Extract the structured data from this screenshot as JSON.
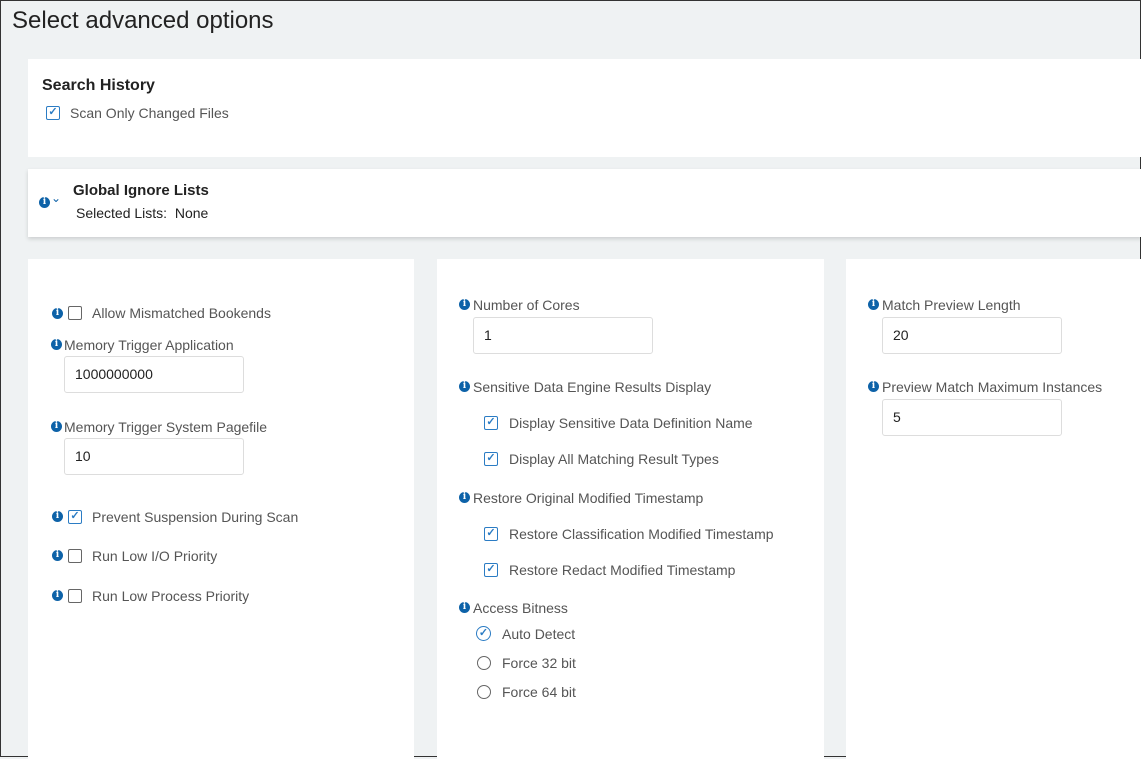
{
  "title": "Select advanced options",
  "search_history": {
    "heading": "Search History",
    "scan_only_changed": {
      "label": "Scan Only Changed Files",
      "checked": true
    }
  },
  "global_ignore": {
    "heading": "Global Ignore Lists",
    "selected_label": "Selected Lists:",
    "selected_value": "None"
  },
  "col1": {
    "allow_mismatched": {
      "label": "Allow Mismatched Bookends",
      "checked": false
    },
    "mem_app": {
      "label": "Memory Trigger Application",
      "value": "1000000000"
    },
    "mem_page": {
      "label": "Memory Trigger System Pagefile",
      "value": "10"
    },
    "prevent_susp": {
      "label": "Prevent Suspension During Scan",
      "checked": true
    },
    "low_io": {
      "label": "Run Low I/O Priority",
      "checked": false
    },
    "low_proc": {
      "label": "Run Low Process Priority",
      "checked": false
    }
  },
  "col2": {
    "cores": {
      "label": "Number of Cores",
      "value": "1"
    },
    "sde": {
      "label": "Sensitive Data Engine Results Display",
      "opt1": "Display Sensitive Data Definition Name",
      "opt2": "Display All Matching Result Types"
    },
    "restore": {
      "label": "Restore Original Modified Timestamp",
      "opt1": "Restore Classification Modified Timestamp",
      "opt2": "Restore Redact Modified Timestamp"
    },
    "bitness": {
      "label": "Access Bitness",
      "options": [
        "Auto Detect",
        "Force 32 bit",
        "Force 64 bit"
      ],
      "selected": "Auto Detect"
    }
  },
  "col3": {
    "preview_len": {
      "label": "Match Preview Length",
      "value": "20"
    },
    "preview_max": {
      "label": "Preview Match Maximum Instances",
      "value": "5"
    }
  }
}
